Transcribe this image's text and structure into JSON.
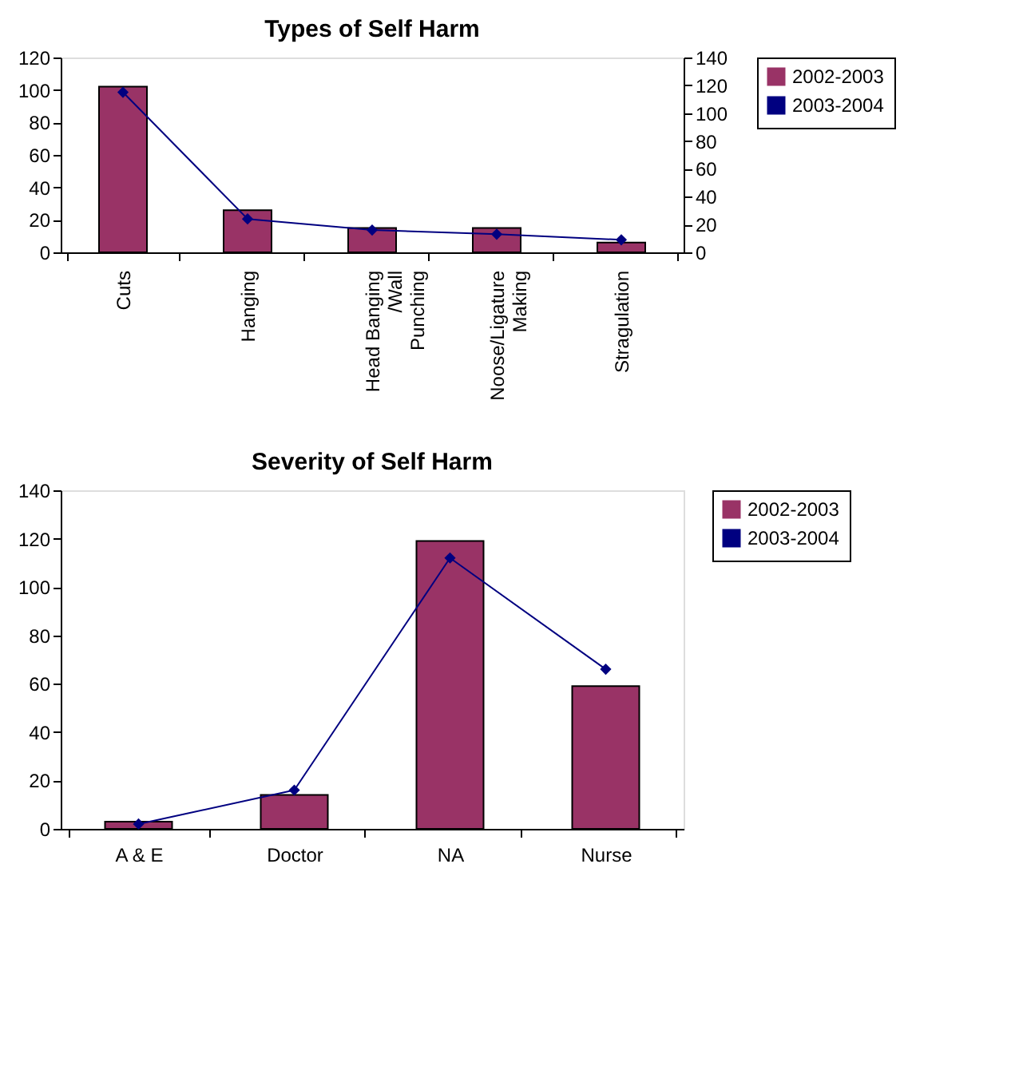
{
  "chart_data": [
    {
      "type": "bar",
      "title": "Types of Self Harm",
      "categories": [
        "Cuts",
        "Hanging",
        "Head Banging\n/Wall\nPunching",
        "Noose/Ligature\nMaking",
        "Stragulation"
      ],
      "series": [
        {
          "name": "2002-2003",
          "color": "#993366",
          "values": [
            102,
            26,
            15,
            15,
            6
          ]
        },
        {
          "name": "2003-2004",
          "type": "line",
          "axis": "y2",
          "color": "#000080",
          "values": [
            115,
            24,
            16,
            13,
            9
          ]
        }
      ],
      "ylim": [
        0,
        120
      ],
      "yticks": [
        0,
        20,
        40,
        60,
        80,
        100,
        120
      ],
      "y2lim": [
        0,
        140
      ],
      "y2ticks": [
        0,
        20,
        40,
        60,
        80,
        100,
        120,
        140
      ],
      "grid": false,
      "legend": "right",
      "marker": "diamond",
      "line_style": "solid"
    },
    {
      "type": "bar",
      "title": "Severity of Self Harm",
      "categories": [
        "A & E",
        "Doctor",
        "NA",
        "Nurse"
      ],
      "series": [
        {
          "name": "2002-2003",
          "color": "#993366",
          "values": [
            3,
            14,
            119,
            59
          ]
        },
        {
          "name": "2003-2004",
          "type": "line",
          "color": "#000080",
          "values": [
            2,
            16,
            112,
            66
          ]
        }
      ],
      "ylim": [
        0,
        140
      ],
      "yticks": [
        0,
        20,
        40,
        60,
        80,
        100,
        120,
        140
      ],
      "grid": false,
      "legend": "right",
      "marker": "diamond",
      "line_style": "solid"
    }
  ]
}
